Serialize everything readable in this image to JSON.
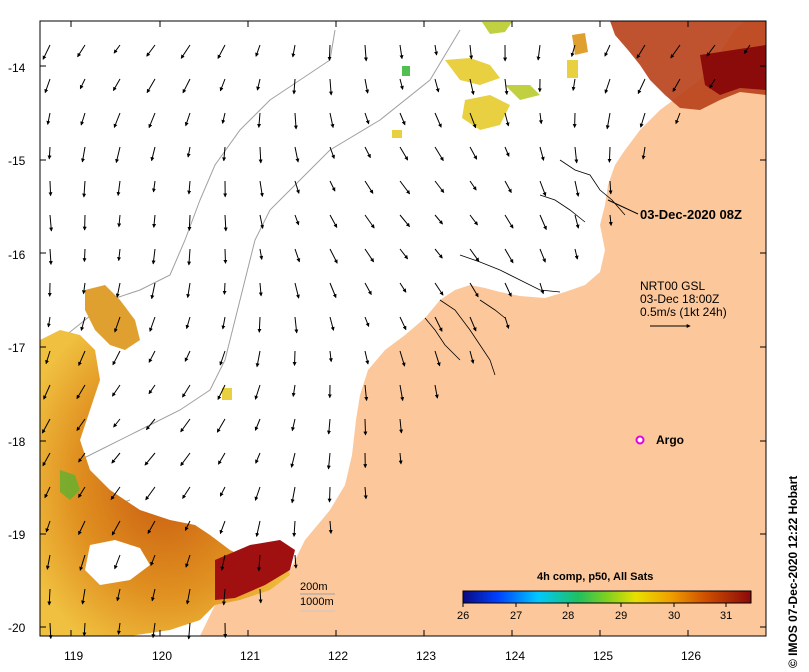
{
  "map": {
    "timestamp_label": "03-Dec-2020 08Z",
    "current_product": {
      "line1": "NRT00 GSL",
      "line2": "03-Dec 18:00Z",
      "line3": "0.5m/s (1kt 24h)"
    },
    "argo_label": "Argo",
    "isobath_labels": [
      "200m",
      "1000m"
    ],
    "colorbar": {
      "title": "4h comp, p50, All Sats",
      "ticks": [
        "26",
        "27",
        "28",
        "29",
        "30",
        "31"
      ]
    },
    "credit": "© IMOS 07-Dec-2020 12:22 Hobart",
    "lat_ticks": [
      "-14",
      "-15",
      "-16",
      "-17",
      "-18",
      "-19",
      "-20"
    ],
    "lon_ticks": [
      "119",
      "120",
      "121",
      "122",
      "123",
      "124",
      "125",
      "126"
    ],
    "colors": {
      "land": "#fcc89b",
      "sst_cool": "#0000a0",
      "sst_warm": "#8b0000"
    }
  }
}
